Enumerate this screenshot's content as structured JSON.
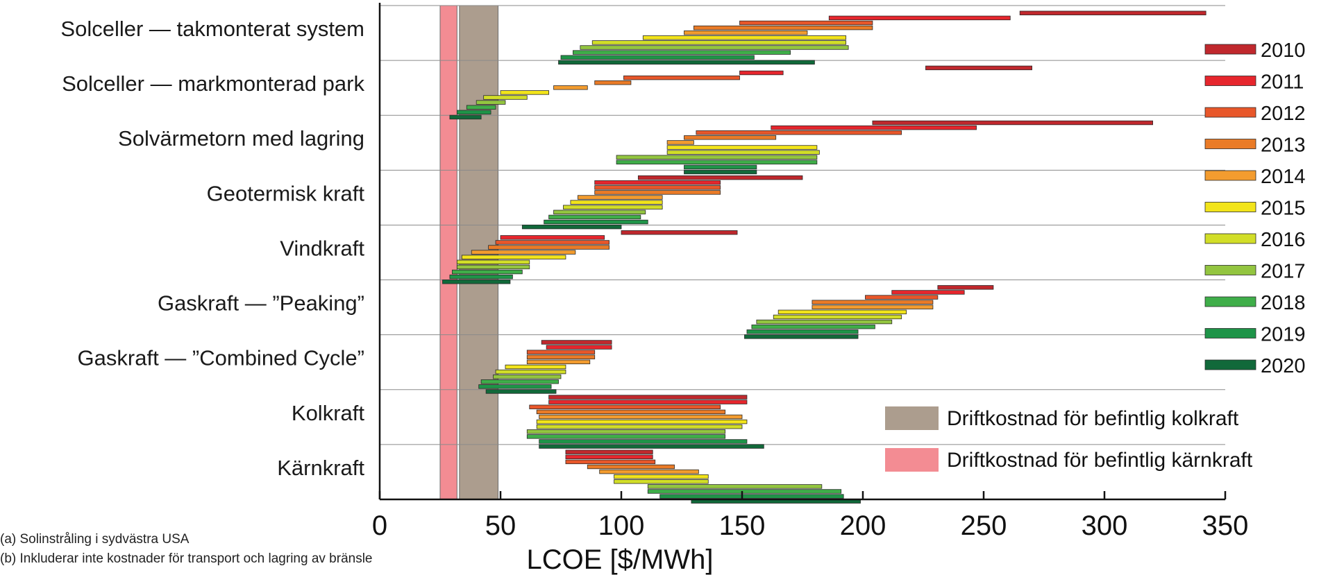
{
  "chart_data": {
    "type": "bar",
    "orientation": "horizontal-range",
    "xlabel": "LCOE [$/MWh]",
    "xlim": [
      0,
      350
    ],
    "xticks": [
      0,
      50,
      100,
      150,
      200,
      250,
      300,
      350
    ],
    "categories": [
      "Solceller — takmonterat system",
      "Solceller — markmonterad park",
      "Solvärmetorn med lagring",
      "Geotermisk kraft",
      "Vindkraft",
      "Gaskraft — ”Peaking”",
      "Gaskraft — ”Combined Cycle”",
      "Kolkraft",
      "Kärnkraft"
    ],
    "years": [
      "2010",
      "2011",
      "2012",
      "2013",
      "2014",
      "2015",
      "2016",
      "2017",
      "2018",
      "2019",
      "2020"
    ],
    "year_colors": [
      "#c0282d",
      "#e6262d",
      "#e8572a",
      "#ea7b27",
      "#f39c2f",
      "#f2e41b",
      "#d2de28",
      "#93c540",
      "#3fae49",
      "#1e9448",
      "#11693a"
    ],
    "ranges": [
      [
        [
          265,
          342
        ],
        [
          186,
          261
        ],
        [
          149,
          204
        ],
        [
          130,
          204
        ],
        [
          126,
          177
        ],
        [
          109,
          193
        ],
        [
          88,
          193
        ],
        [
          83,
          194
        ],
        [
          80,
          170
        ],
        [
          75,
          155
        ],
        [
          74,
          180
        ]
      ],
      [
        [
          226,
          270
        ],
        [
          149,
          167
        ],
        [
          101,
          149
        ],
        [
          89,
          104
        ],
        [
          72,
          86
        ],
        [
          50,
          70
        ],
        [
          43,
          61
        ],
        [
          40,
          52
        ],
        [
          36,
          48
        ],
        [
          32,
          46
        ],
        [
          29,
          42
        ]
      ],
      [
        [
          204,
          320
        ],
        [
          162,
          247
        ],
        [
          131,
          216
        ],
        [
          126,
          164
        ],
        [
          119,
          130
        ],
        [
          119,
          181
        ],
        [
          119,
          182
        ],
        [
          98,
          181
        ],
        [
          98,
          181
        ],
        [
          126,
          156
        ],
        [
          126,
          156
        ]
      ],
      [
        [
          107,
          175
        ],
        [
          89,
          141
        ],
        [
          89,
          141
        ],
        [
          89,
          141
        ],
        [
          82,
          117
        ],
        [
          79,
          117
        ],
        [
          76,
          117
        ],
        [
          72,
          110
        ],
        [
          70,
          108
        ],
        [
          68,
          111
        ],
        [
          59,
          100
        ]
      ],
      [
        [
          100,
          148
        ],
        [
          50,
          93
        ],
        [
          48,
          95
        ],
        [
          45,
          95
        ],
        [
          38,
          81
        ],
        [
          34,
          77
        ],
        [
          32,
          62
        ],
        [
          32,
          62
        ],
        [
          30,
          59
        ],
        [
          29,
          55
        ],
        [
          26,
          54
        ]
      ],
      [
        [
          231,
          254
        ],
        [
          212,
          242
        ],
        [
          201,
          231
        ],
        [
          179,
          229
        ],
        [
          179,
          229
        ],
        [
          165,
          218
        ],
        [
          163,
          216
        ],
        [
          156,
          212
        ],
        [
          154,
          205
        ],
        [
          152,
          198
        ],
        [
          151,
          198
        ]
      ],
      [
        [
          67,
          96
        ],
        [
          69,
          96
        ],
        [
          61,
          89
        ],
        [
          61,
          89
        ],
        [
          61,
          87
        ],
        [
          52,
          77
        ],
        [
          48,
          77
        ],
        [
          47,
          75
        ],
        [
          42,
          74
        ],
        [
          41,
          71
        ],
        [
          44,
          73
        ]
      ],
      [
        [
          70,
          152
        ],
        [
          70,
          152
        ],
        [
          62,
          141
        ],
        [
          65,
          143
        ],
        [
          66,
          150
        ],
        [
          65,
          152
        ],
        [
          65,
          150
        ],
        [
          61,
          143
        ],
        [
          61,
          143
        ],
        [
          66,
          152
        ],
        [
          66,
          159
        ]
      ],
      [
        [
          77,
          113
        ],
        [
          77,
          113
        ],
        [
          77,
          114
        ],
        [
          86,
          122
        ],
        [
          91,
          132
        ],
        [
          97,
          136
        ],
        [
          97,
          136
        ],
        [
          111,
          183
        ],
        [
          111,
          191
        ],
        [
          116,
          192
        ],
        [
          129,
          199
        ]
      ]
    ],
    "bands": [
      {
        "label": "Driftkostnad för befintlig kolkraft",
        "x0": 33,
        "x1": 49,
        "color": "#ac9d8e"
      },
      {
        "label": "Driftkostnad för befintlig kärnkraft",
        "x0": 25,
        "x1": 32,
        "color": "#f38c93"
      }
    ],
    "footnotes": [
      "(a) Solinstråling i sydvästra USA",
      "(b) Inkluderar inte kostnader för transport och lagring av bränsle"
    ]
  }
}
